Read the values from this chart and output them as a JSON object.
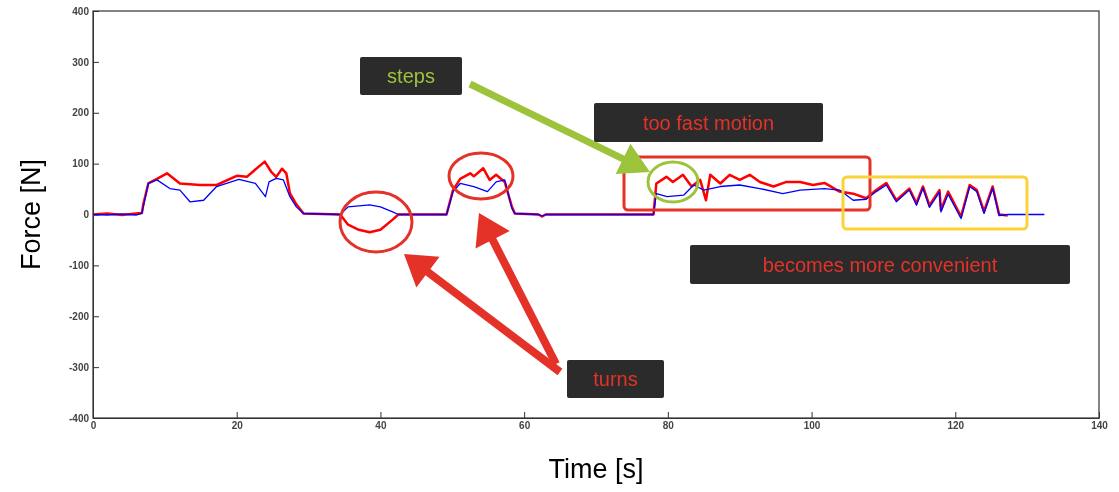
{
  "chart_data": {
    "type": "line",
    "xlabel": "Time [s]",
    "ylabel": "Force [N]",
    "xlim": [
      0,
      140
    ],
    "xticks": [
      0,
      20,
      40,
      60,
      80,
      100,
      120,
      140
    ],
    "ylim": [
      -400,
      400
    ],
    "yticks": [
      -400,
      -300,
      -200,
      -100,
      0,
      100,
      200,
      300,
      400
    ],
    "marker": "none",
    "line_style": "solid",
    "annotations": [
      "steps",
      "too fast motion",
      "becomes more convenient",
      "turns"
    ],
    "series": [
      {
        "color": "#ff0000",
        "x": [
          0,
          2,
          4,
          6,
          6.8,
          7.0,
          7.7,
          8.9,
          10.3,
          12.1,
          14.9,
          17.2,
          20.0,
          21.4,
          23.9,
          24.8,
          25.5,
          26.3,
          26.9,
          27.4,
          28.3,
          29.3,
          34.4,
          35.5,
          37,
          38.5,
          40,
          41.7,
          42.5,
          49.2,
          50.1,
          51.1,
          52.5,
          53.0,
          54.3,
          55.2,
          56.1,
          57.3,
          58.3,
          58.7,
          62,
          62.5,
          63,
          78.0,
          78.4,
          79.8,
          80.7,
          82.1,
          83.3,
          84.5,
          85.3,
          85.9,
          87.3,
          88.6,
          90.0,
          91.4,
          92.8,
          94.7,
          96.5,
          98.4,
          100.2,
          101.8,
          103.9,
          105.8,
          107.6,
          109.0,
          110.4,
          111.8,
          113.6,
          114.6,
          115.5,
          116.4,
          117.8,
          118.0,
          119.0,
          120.8,
          122.0,
          123.0,
          124.0,
          125.2,
          126.1,
          127.3
        ],
        "values": [
          0,
          2,
          -1,
          2,
          3,
          20,
          61,
          70,
          81,
          61,
          58,
          58,
          76,
          74,
          104,
          84,
          74,
          90,
          81,
          42,
          20,
          2,
          0,
          -20,
          -30,
          -35,
          -30,
          -10,
          0,
          0,
          48,
          70,
          81,
          75,
          91,
          68,
          78,
          64,
          15,
          2,
          0,
          -4,
          0,
          0,
          61,
          74,
          64,
          78,
          55,
          68,
          28,
          78,
          61,
          78,
          68,
          78,
          64,
          55,
          64,
          64,
          58,
          62,
          45,
          41,
          32,
          48,
          62,
          28,
          51,
          22,
          55,
          18,
          48,
          9,
          45,
          -4,
          58,
          48,
          6,
          55,
          0,
          -2
        ]
      },
      {
        "color": "#0000ff",
        "x": [
          0,
          2,
          4,
          6,
          6.8,
          7.0,
          7.7,
          8.9,
          10.7,
          12.1,
          13.5,
          15.4,
          17.2,
          20.3,
          22.6,
          24.0,
          24.5,
          25.5,
          26.5,
          27.4,
          28.3,
          29.3,
          34.4,
          35.5,
          37,
          38.5,
          40,
          41.7,
          42.5,
          49.2,
          50.1,
          51.1,
          53.0,
          54.9,
          56.1,
          57.3,
          58.3,
          58.7,
          62,
          62.5,
          63,
          78.0,
          78.4,
          79.9,
          82.2,
          83.6,
          85.0,
          87.3,
          90.0,
          92.8,
          96.0,
          98.4,
          101.8,
          103.9,
          105.8,
          107.6,
          109.0,
          110.4,
          111.8,
          113.6,
          114.6,
          115.5,
          116.4,
          117.8,
          118.0,
          119.0,
          120.8,
          122.0,
          123.0,
          124.0,
          125.2,
          126.1,
          127.3,
          132.4
        ],
        "values": [
          0,
          -1,
          1,
          -1,
          2,
          15,
          61,
          68,
          51,
          48,
          25,
          28,
          55,
          69,
          61,
          35,
          64,
          71,
          68,
          35,
          15,
          2,
          0,
          15,
          17,
          19,
          15,
          5,
          0,
          0,
          45,
          61,
          55,
          45,
          64,
          68,
          12,
          2,
          0,
          -3,
          0,
          0,
          41,
          35,
          38,
          58,
          48,
          55,
          58,
          51,
          41,
          48,
          51,
          48,
          28,
          30,
          45,
          58,
          25,
          48,
          18,
          52,
          14,
          44,
          5,
          40,
          -8,
          55,
          45,
          2,
          52,
          -2,
          0,
          0
        ]
      }
    ]
  }
}
